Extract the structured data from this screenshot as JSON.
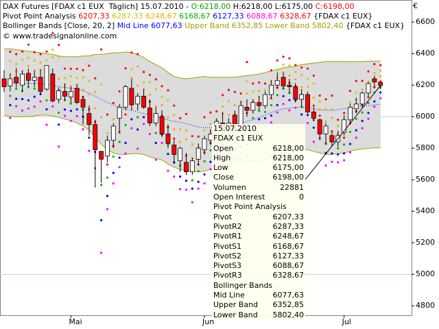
{
  "header": {
    "line1": {
      "prefix": "DAX Futures [FDAX c1 EUX  Täglich] 15.07.2010 - ",
      "o": "O:6218,00",
      "h": " H:6218,00",
      "l": " L:6175,00",
      "c": " C:6198,00"
    },
    "line2": {
      "prefix": "Pivot Point Analysis ",
      "v1": "6207,33",
      "v2": "6287,33",
      "v3": "6248,67",
      "v4": "6168,67",
      "v5": "6127,33",
      "v6": "6088,67",
      "v7": "6328,67",
      "suffix": " {FDAX c1 EUX}"
    },
    "line3": {
      "prefix": "Bollinger Bands [Close, 20, 2] ",
      "mid": "Mid Line 6077,63",
      "upper": " Upper Band 6352,85",
      "lower": " Lower Band 5802,40",
      "suffix": " {FDAX c1 EUX}"
    },
    "line4": "© www.tradesignalonline.com",
    "currency": "€"
  },
  "info_box": {
    "date": "15.07.2010",
    "symbol": "FDAX c1 EUX",
    "rows": [
      {
        "label": "Open",
        "value": "6218,00"
      },
      {
        "label": "High",
        "value": "6218,00"
      },
      {
        "label": "Low",
        "value": "6175,00"
      },
      {
        "label": "Close",
        "value": "6198,00"
      },
      {
        "label": "Volumen",
        "value": "22881"
      },
      {
        "label": "Open Interest",
        "value": "0"
      }
    ],
    "pivot_title": "Pivot Point Analysis",
    "pivot_rows": [
      {
        "label": "Pivot",
        "value": "6207,33"
      },
      {
        "label": "PivotR2",
        "value": "6287,33"
      },
      {
        "label": "PivotR1",
        "value": "6248,67"
      },
      {
        "label": "PivotS1",
        "value": "6168,67"
      },
      {
        "label": "PivotS2",
        "value": "6127,33"
      },
      {
        "label": "PivotS3",
        "value": "6088,67"
      },
      {
        "label": "PivotR3",
        "value": "6328,67"
      }
    ],
    "bb_title": "Bollinger Bands",
    "bb_rows": [
      {
        "label": "Mid Line",
        "value": "6077,63"
      },
      {
        "label": "Upper Band",
        "value": "6352,85"
      },
      {
        "label": "Lower Band",
        "value": "5802,40"
      }
    ]
  },
  "colors": {
    "up": "#ffffff",
    "down": "#ff0000",
    "band_fill": "#dcdcdc",
    "band_line": "#a0a000",
    "mid_line": "#0000ff",
    "pivot": "#ff0000",
    "r1": "#ffa500",
    "r2": "#c8c800",
    "r3": "#ff0000",
    "s1": "#00b000",
    "s2": "#0000ff",
    "s3": "#ff00ff",
    "grid": "#c0d8c0"
  },
  "chart_data": {
    "type": "candlestick",
    "ylim": [
      4740,
      6740
    ],
    "yticks": [
      6600,
      6400,
      6200,
      6000,
      5800,
      5600,
      5400,
      5200,
      5000,
      4800
    ],
    "ytick_labels": [
      "6600",
      "6400",
      "6200",
      "6000",
      "5800",
      "5600",
      "5400",
      "5200",
      "5000",
      "4800"
    ],
    "xtick_labels": [
      "Mai",
      "Jun",
      "Jul"
    ],
    "xtick_index": [
      11,
      33,
      56
    ],
    "candles": [
      {
        "o": 6240,
        "h": 6295,
        "l": 6155,
        "c": 6190
      },
      {
        "o": 6195,
        "h": 6270,
        "l": 6160,
        "c": 6240
      },
      {
        "o": 6250,
        "h": 6310,
        "l": 6185,
        "c": 6215
      },
      {
        "o": 6200,
        "h": 6290,
        "l": 6155,
        "c": 6270
      },
      {
        "o": 6275,
        "h": 6305,
        "l": 6190,
        "c": 6230
      },
      {
        "o": 6230,
        "h": 6290,
        "l": 6190,
        "c": 6250
      },
      {
        "o": 6250,
        "h": 6300,
        "l": 6145,
        "c": 6160
      },
      {
        "o": 6175,
        "h": 6320,
        "l": 6165,
        "c": 6325
      },
      {
        "o": 6270,
        "h": 6305,
        "l": 6090,
        "c": 6100
      },
      {
        "o": 6110,
        "h": 6185,
        "l": 6085,
        "c": 6165
      },
      {
        "o": 6160,
        "h": 6210,
        "l": 6100,
        "c": 6130
      },
      {
        "o": 6125,
        "h": 6190,
        "l": 6090,
        "c": 6160
      },
      {
        "o": 6180,
        "h": 6205,
        "l": 6080,
        "c": 6090
      },
      {
        "o": 6110,
        "h": 6130,
        "l": 5950,
        "c": 6060
      },
      {
        "o": 6020,
        "h": 6070,
        "l": 5880,
        "c": 5950
      },
      {
        "o": 5950,
        "h": 5980,
        "l": 5550,
        "c": 5790
      },
      {
        "o": 5780,
        "h": 5780,
        "l": 5580,
        "c": 5730
      },
      {
        "o": 5750,
        "h": 5880,
        "l": 5710,
        "c": 5850
      },
      {
        "o": 5850,
        "h": 5960,
        "l": 5800,
        "c": 5940
      },
      {
        "o": 5990,
        "h": 6080,
        "l": 5900,
        "c": 6060
      },
      {
        "o": 6060,
        "h": 6200,
        "l": 6040,
        "c": 6190
      },
      {
        "o": 6180,
        "h": 6240,
        "l": 6040,
        "c": 6075
      },
      {
        "o": 6080,
        "h": 6150,
        "l": 6040,
        "c": 6130
      },
      {
        "o": 6130,
        "h": 6175,
        "l": 6050,
        "c": 6060
      },
      {
        "o": 6055,
        "h": 6110,
        "l": 5940,
        "c": 5960
      },
      {
        "o": 5960,
        "h": 6060,
        "l": 5940,
        "c": 6020
      },
      {
        "o": 6000,
        "h": 6040,
        "l": 5870,
        "c": 5890
      },
      {
        "o": 5890,
        "h": 5950,
        "l": 5800,
        "c": 5830
      },
      {
        "o": 5820,
        "h": 5850,
        "l": 5700,
        "c": 5760
      },
      {
        "o": 5720,
        "h": 5810,
        "l": 5650,
        "c": 5800
      },
      {
        "o": 5710,
        "h": 5770,
        "l": 5630,
        "c": 5650
      },
      {
        "o": 5650,
        "h": 5740,
        "l": 5630,
        "c": 5720
      },
      {
        "o": 5730,
        "h": 5830,
        "l": 5690,
        "c": 5800
      },
      {
        "o": 5790,
        "h": 5880,
        "l": 5760,
        "c": 5860
      },
      {
        "o": 5850,
        "h": 5920,
        "l": 5820,
        "c": 5890
      },
      {
        "o": 5890,
        "h": 5990,
        "l": 5870,
        "c": 5970
      },
      {
        "o": 5960,
        "h": 6030,
        "l": 5870,
        "c": 5920
      },
      {
        "o": 5920,
        "h": 5990,
        "l": 5850,
        "c": 5960
      },
      {
        "o": 6010,
        "h": 6040,
        "l": 5900,
        "c": 5920
      },
      {
        "o": 5920,
        "h": 6100,
        "l": 5900,
        "c": 6070
      },
      {
        "o": 6060,
        "h": 6110,
        "l": 6000,
        "c": 6040
      },
      {
        "o": 6040,
        "h": 6110,
        "l": 6020,
        "c": 6090
      },
      {
        "o": 6090,
        "h": 6130,
        "l": 6040,
        "c": 6070
      },
      {
        "o": 6070,
        "h": 6160,
        "l": 6050,
        "c": 6140
      },
      {
        "o": 6140,
        "h": 6230,
        "l": 6120,
        "c": 6200
      },
      {
        "o": 6200,
        "h": 6280,
        "l": 6180,
        "c": 6230
      },
      {
        "o": 6250,
        "h": 6280,
        "l": 6170,
        "c": 6195
      },
      {
        "o": 6200,
        "h": 6240,
        "l": 6150,
        "c": 6190
      },
      {
        "o": 6190,
        "h": 6215,
        "l": 6090,
        "c": 6110
      },
      {
        "o": 6110,
        "h": 6175,
        "l": 6060,
        "c": 6140
      },
      {
        "o": 6140,
        "h": 6160,
        "l": 6020,
        "c": 6030
      },
      {
        "o": 6030,
        "h": 6060,
        "l": 5970,
        "c": 5990
      },
      {
        "o": 5980,
        "h": 5990,
        "l": 5850,
        "c": 5890
      },
      {
        "o": 5890,
        "h": 5960,
        "l": 5820,
        "c": 5940
      },
      {
        "o": 5880,
        "h": 5900,
        "l": 5810,
        "c": 5840
      },
      {
        "o": 5840,
        "h": 5910,
        "l": 5810,
        "c": 5880
      },
      {
        "o": 5900,
        "h": 6010,
        "l": 5880,
        "c": 5980
      },
      {
        "o": 5980,
        "h": 6080,
        "l": 5960,
        "c": 6060
      },
      {
        "o": 6050,
        "h": 6120,
        "l": 6020,
        "c": 6080
      },
      {
        "o": 6080,
        "h": 6160,
        "l": 6060,
        "c": 6150
      },
      {
        "o": 6150,
        "h": 6220,
        "l": 6130,
        "c": 6210
      },
      {
        "o": 6240,
        "h": 6260,
        "l": 6190,
        "c": 6220
      },
      {
        "o": 6218,
        "h": 6218,
        "l": 6175,
        "c": 6198
      }
    ],
    "bb_upper": [
      6430,
      6430,
      6425,
      6420,
      6415,
      6410,
      6405,
      6400,
      6395,
      6385,
      6380,
      6380,
      6380,
      6385,
      6385,
      6395,
      6395,
      6400,
      6405,
      6405,
      6410,
      6405,
      6395,
      6375,
      6350,
      6330,
      6310,
      6280,
      6255,
      6245,
      6240,
      6245,
      6250,
      6255,
      6250,
      6250,
      6250,
      6250,
      6250,
      6255,
      6260,
      6265,
      6270,
      6280,
      6290,
      6300,
      6310,
      6315,
      6320,
      6330,
      6335,
      6340,
      6345,
      6350,
      6350,
      6350,
      6350,
      6350,
      6350,
      6350,
      6352,
      6352,
      6353
    ],
    "bb_mid": [
      6215,
      6210,
      6210,
      6210,
      6210,
      6210,
      6210,
      6205,
      6200,
      6190,
      6185,
      6180,
      6175,
      6165,
      6150,
      6130,
      6110,
      6090,
      6075,
      6060,
      6050,
      6040,
      6030,
      6020,
      6010,
      6000,
      5990,
      5980,
      5970,
      5965,
      5955,
      5945,
      5935,
      5930,
      5930,
      5935,
      5940,
      5945,
      5950,
      5960,
      5970,
      5980,
      5995,
      6010,
      6025,
      6040,
      6050,
      6055,
      6060,
      6060,
      6055,
      6050,
      6045,
      6040,
      6040,
      6045,
      6050,
      6055,
      6060,
      6065,
      6070,
      6075,
      6078
    ],
    "bb_lower": [
      6010,
      6000,
      6000,
      6000,
      6000,
      6005,
      6010,
      6010,
      6005,
      5995,
      5985,
      5975,
      5960,
      5940,
      5915,
      5870,
      5825,
      5790,
      5770,
      5760,
      5760,
      5765,
      5765,
      5760,
      5745,
      5735,
      5725,
      5700,
      5680,
      5665,
      5660,
      5655,
      5650,
      5655,
      5665,
      5670,
      5680,
      5690,
      5700,
      5710,
      5715,
      5720,
      5720,
      5730,
      5740,
      5760,
      5780,
      5790,
      5795,
      5795,
      5790,
      5780,
      5770,
      5760,
      5760,
      5765,
      5770,
      5780,
      5790,
      5795,
      5800,
      5802,
      5802
    ]
  }
}
